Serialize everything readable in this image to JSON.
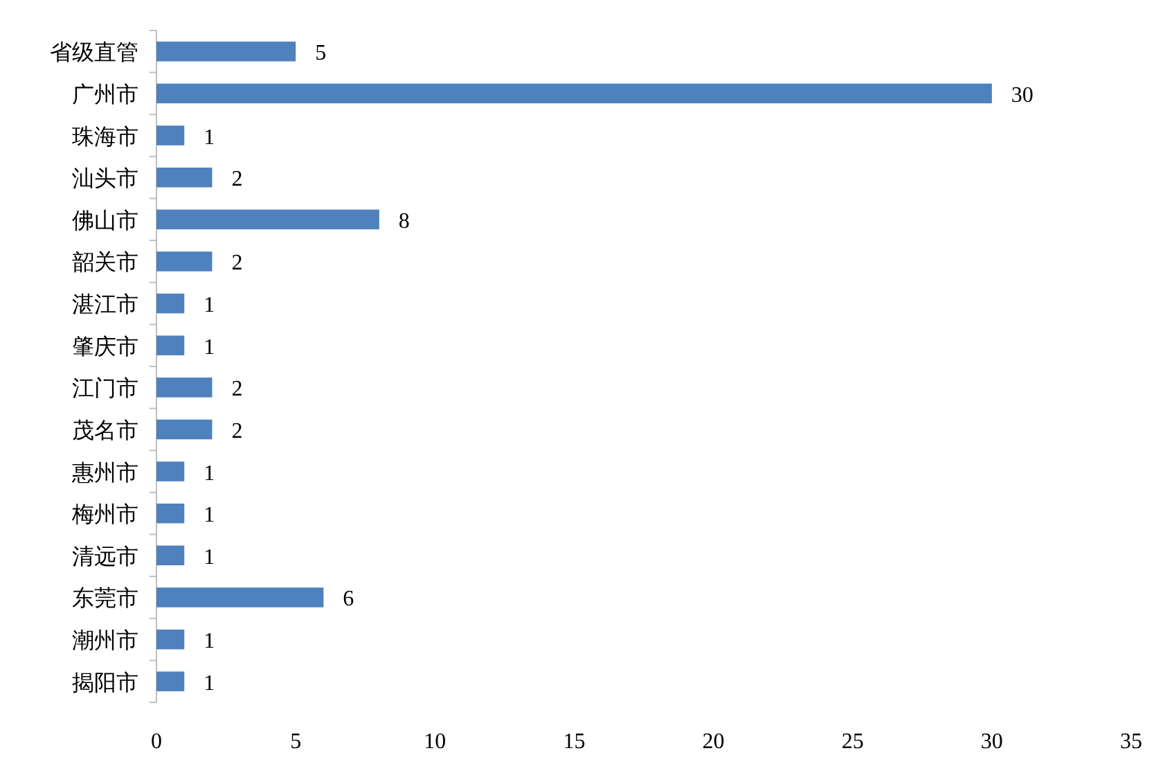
{
  "chart_data": {
    "type": "bar",
    "orientation": "horizontal",
    "categories": [
      "省级直管",
      "广州市",
      "珠海市",
      "汕头市",
      "佛山市",
      "韶关市",
      "湛江市",
      "肇庆市",
      "江门市",
      "茂名市",
      "惠州市",
      "梅州市",
      "清远市",
      "东莞市",
      "潮州市",
      "揭阳市"
    ],
    "values": [
      5,
      30,
      1,
      2,
      8,
      2,
      1,
      1,
      2,
      2,
      1,
      1,
      1,
      6,
      1,
      1
    ],
    "color": "#4f81bd",
    "xlim": [
      0,
      35
    ],
    "xticks": [
      0,
      5,
      10,
      15,
      20,
      25,
      30,
      35
    ],
    "data_labels": true
  }
}
